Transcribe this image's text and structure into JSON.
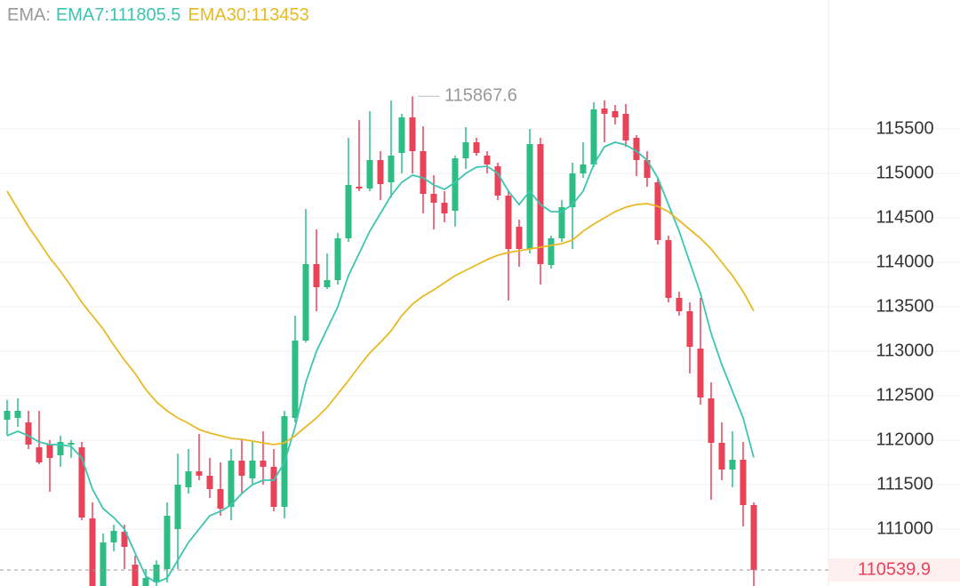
{
  "chart_data": {
    "type": "candlestick",
    "legend_title": "EMA:",
    "up_color": "#2ebd85",
    "down_color": "#e9435a",
    "open": [
      112230,
      112250,
      112200,
      111920,
      111950,
      111830,
      111950,
      111920,
      111120,
      110360,
      110850,
      110970,
      110600,
      110360,
      110400,
      110550,
      111000,
      111470,
      111650,
      111600,
      111450,
      111250,
      111770,
      111570,
      111770,
      111700,
      111250,
      112250,
      113120,
      113980,
      113720,
      113800,
      114270,
      114850,
      114830,
      115150,
      114900,
      115230,
      115630,
      115250,
      114770,
      114670,
      114580,
      115170,
      115350,
      115200,
      115080,
      114750,
      114400,
      114150,
      115330,
      113970,
      114270,
      114620,
      115000,
      115100,
      115730,
      115700,
      115670,
      115400,
      115150,
      114900,
      114250,
      113600,
      113450,
      113030,
      112470,
      111970,
      111670,
      111780,
      111270
    ],
    "high": [
      112450,
      112470,
      112330,
      112330,
      112000,
      112050,
      112000,
      111980,
      111300,
      110950,
      111050,
      111050,
      110700,
      110550,
      110650,
      111300,
      111850,
      111900,
      112070,
      111800,
      111750,
      111900,
      112000,
      111980,
      112100,
      111900,
      112330,
      113400,
      114600,
      114370,
      114100,
      114330,
      115400,
      115600,
      115700,
      115250,
      115820,
      115670,
      115867.6,
      115530,
      114980,
      114800,
      115200,
      115520,
      115400,
      115250,
      115120,
      114800,
      114480,
      115500,
      115400,
      114300,
      114700,
      115120,
      115350,
      115800,
      115820,
      115770,
      115780,
      115430,
      115250,
      114950,
      114300,
      113670,
      113550,
      113600,
      112650,
      112200,
      112100,
      111980,
      111300
    ],
    "low": [
      112050,
      112150,
      111900,
      111730,
      111420,
      111700,
      111800,
      111100,
      110360,
      110360,
      110750,
      110550,
      110360,
      110360,
      110360,
      110400,
      110550,
      111400,
      111550,
      111350,
      111150,
      111100,
      111400,
      111500,
      111500,
      111200,
      111120,
      112200,
      113100,
      113450,
      113700,
      113750,
      114230,
      114800,
      114800,
      114700,
      114730,
      115000,
      115000,
      114550,
      114370,
      114450,
      114400,
      115050,
      115200,
      115000,
      114700,
      113570,
      113950,
      114100,
      113750,
      113930,
      114230,
      114150,
      114950,
      115070,
      115350,
      115550,
      115300,
      114970,
      114850,
      114200,
      113550,
      113400,
      112750,
      112400,
      111330,
      111550,
      111470,
      111030,
      110360
    ],
    "close": [
      112330,
      112330,
      111950,
      111750,
      111800,
      111980,
      111970,
      111130,
      110360,
      110850,
      110980,
      110800,
      110360,
      110450,
      110600,
      111150,
      111500,
      111650,
      111600,
      111450,
      111230,
      111770,
      111600,
      111770,
      111700,
      111250,
      112270,
      113120,
      113980,
      113720,
      113800,
      114270,
      114870,
      114830,
      115150,
      114880,
      115200,
      115630,
      115250,
      114770,
      114670,
      114550,
      115170,
      115350,
      115230,
      115100,
      114750,
      114150,
      114150,
      115330,
      113980,
      114270,
      114620,
      115000,
      115100,
      115720,
      115670,
      115630,
      115370,
      115150,
      114950,
      114250,
      113600,
      113450,
      113050,
      112480,
      111970,
      111670,
      111780,
      111270,
      110539.9
    ],
    "series": [
      {
        "name": "EMA7:",
        "color": "#3cc5b0",
        "values": [
          112050,
          112100,
          112050,
          111980,
          111950,
          111950,
          111930,
          111800,
          111450,
          111230,
          111130,
          111000,
          110730,
          110470,
          110400,
          110450,
          110650,
          110850,
          111000,
          111150,
          111200,
          111270,
          111400,
          111500,
          111550,
          111550,
          111750,
          112150,
          112650,
          113000,
          113250,
          113500,
          113850,
          114100,
          114350,
          114550,
          114750,
          114900,
          114980,
          114950,
          114870,
          114820,
          114900,
          115000,
          115070,
          115080,
          115000,
          114800,
          114650,
          114800,
          114650,
          114570,
          114570,
          114650,
          114800,
          115100,
          115300,
          115350,
          115320,
          115250,
          115150,
          114950,
          114650,
          114350,
          114000,
          113650,
          113200,
          112850,
          112550,
          112250,
          111805.5
        ]
      },
      {
        "name": "EMA30:",
        "color": "#e8b923",
        "values": [
          114800,
          114600,
          114400,
          114230,
          114050,
          113900,
          113730,
          113550,
          113400,
          113250,
          113070,
          112900,
          112750,
          112570,
          112430,
          112330,
          112250,
          112190,
          112120,
          112080,
          112050,
          112020,
          112010,
          111990,
          111970,
          111950,
          111970,
          112050,
          112150,
          112250,
          112370,
          112520,
          112670,
          112830,
          112980,
          113100,
          113230,
          113400,
          113530,
          113620,
          113690,
          113770,
          113850,
          113910,
          113970,
          114030,
          114080,
          114110,
          114130,
          114150,
          114170,
          114190,
          114210,
          114250,
          114350,
          114430,
          114500,
          114570,
          114620,
          114650,
          114660,
          114630,
          114570,
          114470,
          114370,
          114270,
          114150,
          114000,
          113850,
          113670,
          113453.0
        ]
      }
    ],
    "ylim": [
      110360,
      116950
    ],
    "yticks": [
      111000,
      111500,
      112000,
      112500,
      113000,
      113500,
      114000,
      114500,
      115000,
      115500
    ],
    "grid": true
  }
}
